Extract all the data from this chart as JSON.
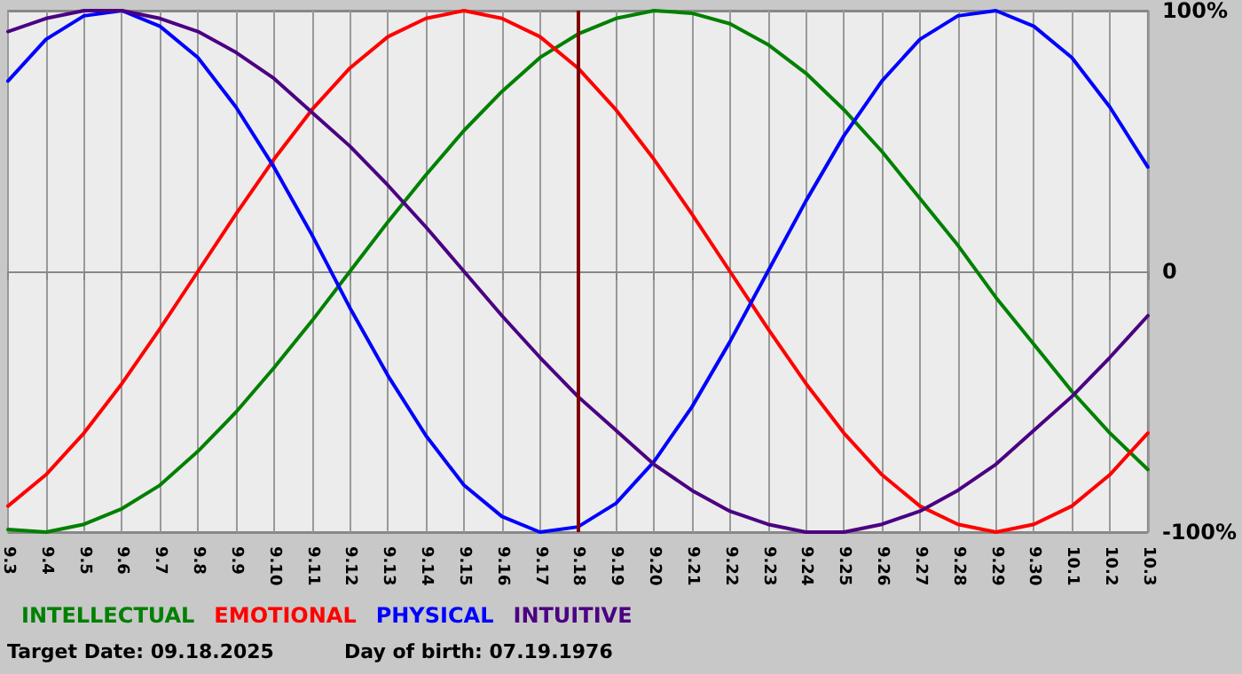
{
  "chart_data": {
    "type": "line",
    "categories": [
      "9.3",
      "9.4",
      "9.5",
      "9.6",
      "9.7",
      "9.8",
      "9.9",
      "9.10",
      "9.11",
      "9.12",
      "9.13",
      "9.14",
      "9.15",
      "9.16",
      "9.17",
      "9.18",
      "9.19",
      "9.20",
      "9.21",
      "9.22",
      "9.23",
      "9.24",
      "9.25",
      "9.26",
      "9.27",
      "9.28",
      "9.29",
      "9.30",
      "10.1",
      "10.2",
      "10.3"
    ],
    "series": [
      {
        "name": "INTELLECTUAL",
        "color": "#008000",
        "values": [
          -99,
          -100,
          -97,
          -91,
          -82,
          -69,
          -54,
          -37,
          -19,
          0,
          19,
          37,
          54,
          69,
          82,
          91,
          97,
          100,
          99,
          95,
          87,
          76,
          62,
          46,
          28,
          10,
          -10,
          -28,
          -46,
          -62,
          -76
        ]
      },
      {
        "name": "EMOTIONAL",
        "color": "#ff0000",
        "values": [
          -90,
          -78,
          -62,
          -43,
          -22,
          0,
          22,
          43,
          62,
          78,
          90,
          97,
          100,
          97,
          90,
          78,
          62,
          43,
          22,
          0,
          -22,
          -43,
          -62,
          -78,
          -90,
          -97,
          -100,
          -97,
          -90,
          -78,
          -62
        ]
      },
      {
        "name": "PHYSICAL",
        "color": "#0000ff",
        "values": [
          73,
          89,
          98,
          100,
          94,
          82,
          63,
          40,
          14,
          -14,
          -40,
          -63,
          -82,
          -94,
          -100,
          -98,
          -89,
          -73,
          -52,
          -27,
          0,
          27,
          52,
          73,
          89,
          98,
          100,
          94,
          82,
          63,
          40
        ]
      },
      {
        "name": "INTUITIVE",
        "color": "#4b0082",
        "values": [
          92,
          97,
          100,
          100,
          97,
          92,
          84,
          74,
          61,
          48,
          33,
          17,
          0,
          -17,
          -33,
          -48,
          -61,
          -74,
          -84,
          -92,
          -97,
          -100,
          -100,
          -97,
          -92,
          -84,
          -74,
          -61,
          -48,
          -33,
          -17
        ]
      }
    ],
    "ylim": [
      -100,
      100
    ],
    "yticks": [
      {
        "value": -100,
        "label": "-100%"
      },
      0,
      {
        "value": 100,
        "label": "100%"
      }
    ],
    "ref_lines": [
      {
        "axis": "x",
        "value": "9.18",
        "color": "#800000"
      }
    ],
    "annotations": [
      "Target Date: 09.18.2025",
      "Day of birth: 07.19.1976"
    ],
    "grid": true,
    "legend": "bottom left",
    "marker": "none",
    "line_style": "solid"
  }
}
